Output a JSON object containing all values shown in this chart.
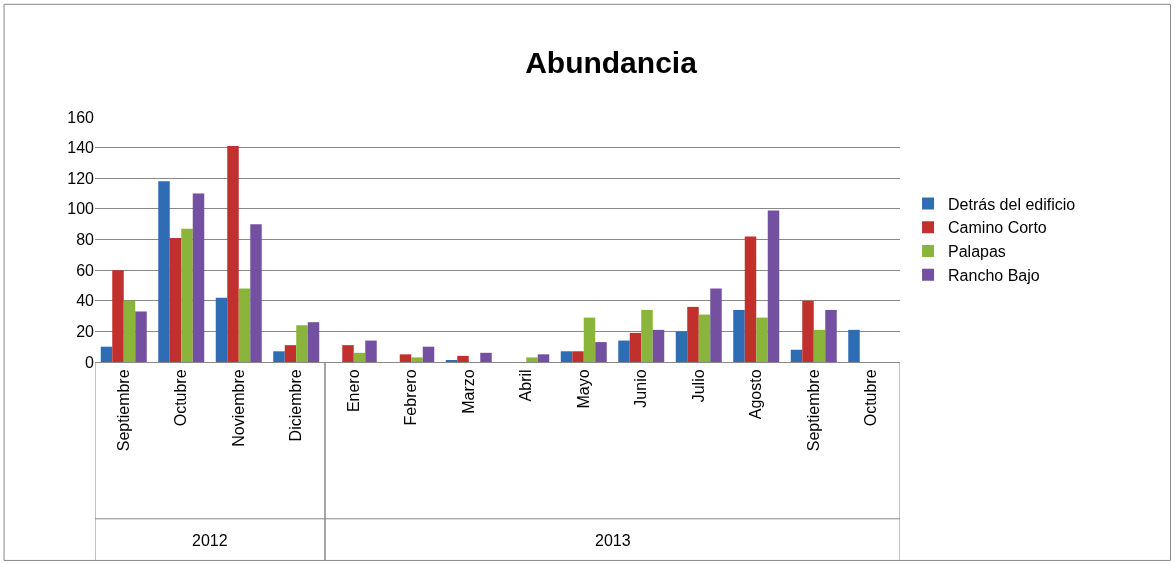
{
  "chart_data": {
    "type": "bar",
    "title": "Abundancia",
    "categories": [
      "Septiembre",
      "Octubre",
      "Noviembre",
      "Diciembre",
      "Enero",
      "Febrero",
      "Marzo",
      "Abril",
      "Mayo",
      "Junio",
      "Julio",
      "Agosto",
      "Septiembre",
      "Octubre"
    ],
    "series": [
      {
        "name": "Detrás del edificio",
        "color": "#2e6db4",
        "values": [
          10,
          118,
          42,
          7,
          0,
          0,
          1,
          0,
          7,
          14,
          20,
          34,
          8,
          21
        ]
      },
      {
        "name": "Camino Corto",
        "color": "#c0302c",
        "values": [
          60,
          81,
          141,
          11,
          11,
          5,
          4,
          0,
          7,
          19,
          36,
          82,
          40,
          0
        ]
      },
      {
        "name": "Palapas",
        "color": "#8ab43a",
        "values": [
          40,
          87,
          48,
          24,
          6,
          3,
          0,
          3,
          29,
          34,
          31,
          29,
          21,
          0
        ]
      },
      {
        "name": "Rancho Bajo",
        "color": "#7450a0",
        "values": [
          33,
          110,
          90,
          26,
          14,
          10,
          6,
          5,
          13,
          21,
          48,
          99,
          34,
          0
        ]
      }
    ],
    "annotations": [
      "2012",
      "2013"
    ],
    "ylim": [
      0,
      160
    ],
    "yticks": [
      0,
      20,
      40,
      60,
      80,
      100,
      120,
      140,
      160
    ],
    "grid": "y",
    "legend": "right"
  }
}
